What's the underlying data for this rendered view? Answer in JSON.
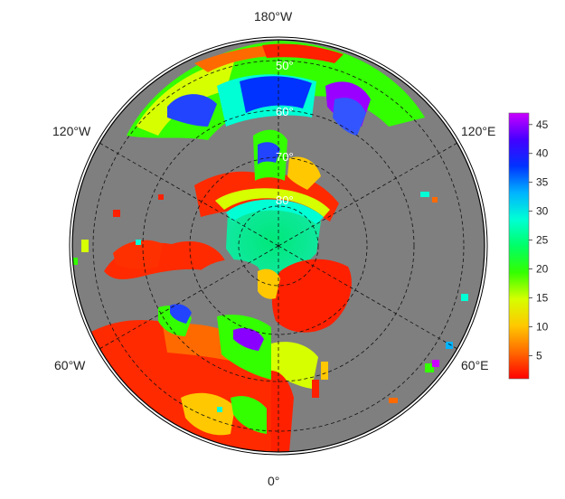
{
  "map": {
    "longitude_labels": {
      "top": "180°W",
      "left_upper": "120°W",
      "right_upper": "120°E",
      "left_lower": "60°W",
      "right_lower": "60°E",
      "bottom": "0°"
    },
    "latitude_labels": [
      "50°",
      "60°",
      "70°",
      "80°"
    ],
    "projection": "north polar stereographic",
    "land_color": "#7f7f7f",
    "missing_color": "#7f7f7f"
  },
  "colorbar": {
    "ticks": [
      "5",
      "10",
      "15",
      "20",
      "25",
      "30",
      "35",
      "40",
      "45"
    ],
    "min": 1,
    "max": 47,
    "colors": [
      "#ff0000",
      "#ff6a00",
      "#ffc800",
      "#d6ff00",
      "#33ff00",
      "#00ff66",
      "#00ffd5",
      "#00b3ff",
      "#0033ff",
      "#4400ff",
      "#cc00ff"
    ]
  }
}
